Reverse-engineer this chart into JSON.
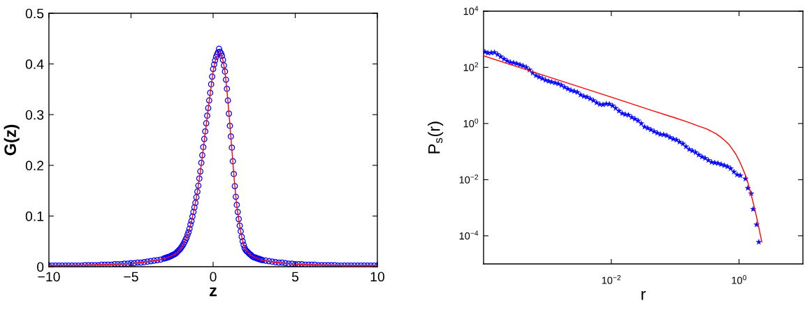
{
  "chart_data": [
    {
      "type": "scatter",
      "xlabel": "z",
      "ylabel": "G(z)",
      "xlim": [
        -10,
        10
      ],
      "ylim": [
        0,
        0.5
      ],
      "xticks": [
        {
          "value": -10,
          "label": "−10"
        },
        {
          "value": -5,
          "label": "−5"
        },
        0,
        5,
        10
      ],
      "yticks": [
        0,
        0.1,
        0.2,
        0.3,
        0.4,
        0.5
      ],
      "series": [
        {
          "type": "scatter",
          "marker": "circle",
          "color": "#0000ff",
          "x": [
            -10.0,
            -9.8,
            -9.6,
            -9.4,
            -9.2,
            -9.0,
            -8.8,
            -8.6,
            -8.4,
            -8.2,
            -8.0,
            -7.8,
            -7.6,
            -7.4,
            -7.2,
            -7.0,
            -6.8,
            -6.6,
            -6.4,
            -6.2,
            -6.0,
            -5.8,
            -5.6,
            -5.4,
            -5.2,
            -5.0,
            -4.8,
            -4.6,
            -4.4,
            -4.2,
            -4.0,
            -3.8,
            -3.6,
            -3.4,
            -3.2,
            -3.0,
            -2.94,
            -2.88,
            -2.82,
            -2.76,
            -2.7,
            -2.64,
            -2.58,
            -2.52,
            -2.46,
            -2.4,
            -2.34,
            -2.28,
            -2.22,
            -2.16,
            -2.1,
            -2.04,
            -1.98,
            -1.92,
            -1.86,
            -1.8,
            -1.74,
            -1.68,
            -1.62,
            -1.56,
            -1.5,
            -1.44,
            -1.38,
            -1.32,
            -1.26,
            -1.2,
            -1.14,
            -1.08,
            -1.02,
            -0.96,
            -0.9,
            -0.84,
            -0.78,
            -0.72,
            -0.66,
            -0.6,
            -0.54,
            -0.48,
            -0.42,
            -0.36,
            -0.3,
            -0.24,
            -0.18,
            -0.12,
            -0.06,
            0,
            0.06,
            0.12,
            0.18,
            0.24,
            0.3,
            0.36,
            0.42,
            0.48,
            0.54,
            0.6,
            0.66,
            0.72,
            0.78,
            0.84,
            0.9,
            0.96,
            1.02,
            1.08,
            1.14,
            1.2,
            1.26,
            1.32,
            1.38,
            1.44,
            1.5,
            1.56,
            1.62,
            1.68,
            1.74,
            1.8,
            1.86,
            1.92,
            1.98,
            2.04,
            2.1,
            2.16,
            2.22,
            2.28,
            2.34,
            2.4,
            2.46,
            2.52,
            2.58,
            2.64,
            2.7,
            2.76,
            2.82,
            2.88,
            2.94,
            3.0,
            3.2,
            3.4,
            3.6,
            3.8,
            4.0,
            4.2,
            4.4,
            4.6,
            4.8,
            5.0,
            5.2,
            5.4,
            5.6,
            5.8,
            6.0,
            6.2,
            6.4,
            6.6,
            6.8,
            7.0,
            7.2,
            7.4,
            7.6,
            7.8,
            8.0,
            8.2,
            8.4,
            8.6,
            8.8,
            9.0,
            9.2,
            9.4,
            9.6,
            9.8,
            10.0
          ],
          "values": [
            0.002,
            0.002,
            0.002,
            0.002,
            0.002,
            0.002,
            0.002,
            0.002,
            0.002,
            0.002,
            0.002,
            0.003,
            0.003,
            0.003,
            0.003,
            0.003,
            0.004,
            0.004,
            0.004,
            0.004,
            0.005,
            0.005,
            0.005,
            0.006,
            0.006,
            0.007,
            0.007,
            0.008,
            0.008,
            0.009,
            0.01,
            0.011,
            0.012,
            0.013,
            0.014,
            0.016,
            0.017,
            0.017,
            0.018,
            0.019,
            0.019,
            0.02,
            0.021,
            0.022,
            0.023,
            0.024,
            0.025,
            0.026,
            0.028,
            0.03,
            0.032,
            0.034,
            0.036,
            0.039,
            0.042,
            0.045,
            0.049,
            0.053,
            0.057,
            0.063,
            0.068,
            0.075,
            0.083,
            0.09,
            0.099,
            0.108,
            0.117,
            0.126,
            0.137,
            0.148,
            0.16,
            0.174,
            0.188,
            0.205,
            0.22,
            0.236,
            0.252,
            0.267,
            0.283,
            0.298,
            0.313,
            0.328,
            0.343,
            0.36,
            0.375,
            0.39,
            0.399,
            0.407,
            0.414,
            0.419,
            0.423,
            0.43,
            0.424,
            0.421,
            0.416,
            0.408,
            0.397,
            0.385,
            0.369,
            0.351,
            0.328,
            0.302,
            0.278,
            0.257,
            0.235,
            0.208,
            0.183,
            0.159,
            0.138,
            0.122,
            0.108,
            0.094,
            0.081,
            0.07,
            0.059,
            0.05,
            0.043,
            0.037,
            0.033,
            0.031,
            0.029,
            0.027,
            0.025,
            0.024,
            0.022,
            0.02,
            0.019,
            0.018,
            0.018,
            0.017,
            0.016,
            0.016,
            0.015,
            0.014,
            0.014,
            0.013,
            0.012,
            0.011,
            0.01,
            0.009,
            0.008,
            0.008,
            0.007,
            0.006,
            0.006,
            0.005,
            0.005,
            0.005,
            0.004,
            0.004,
            0.004,
            0.004,
            0.003,
            0.003,
            0.003,
            0.003,
            0.003,
            0.003,
            0.002,
            0.002,
            0.002,
            0.002,
            0.002,
            0.002,
            0.002,
            0.002,
            0.002,
            0.002,
            0.002,
            0.002,
            0.002
          ]
        },
        {
          "type": "line",
          "line_style": "solid",
          "color": "#ff0000",
          "x": [
            -10,
            -8,
            -6,
            -5,
            -4,
            -3.5,
            -3,
            -2.5,
            -2.2,
            -2,
            -1.8,
            -1.6,
            -1.5,
            -1.4,
            -1.3,
            -1.2,
            -1.1,
            -1.0,
            -0.9,
            -0.8,
            -0.7,
            -0.6,
            -0.5,
            -0.4,
            -0.3,
            -0.2,
            -0.1,
            0,
            0.1,
            0.2,
            0.3,
            0.36,
            0.45,
            0.5,
            0.6,
            0.7,
            0.8,
            0.9,
            1.0,
            1.1,
            1.2,
            1.3,
            1.4,
            1.5,
            1.6,
            1.7,
            1.8,
            1.9,
            2.0,
            2.2,
            2.5,
            3.0,
            3.5,
            4,
            5,
            6,
            8,
            10
          ],
          "values": [
            0.002,
            0.003,
            0.005,
            0.006,
            0.01,
            0.012,
            0.016,
            0.022,
            0.027,
            0.035,
            0.045,
            0.059,
            0.068,
            0.079,
            0.092,
            0.107,
            0.123,
            0.14,
            0.16,
            0.182,
            0.207,
            0.233,
            0.259,
            0.285,
            0.311,
            0.336,
            0.361,
            0.385,
            0.402,
            0.413,
            0.42,
            0.422,
            0.42,
            0.417,
            0.407,
            0.389,
            0.362,
            0.327,
            0.288,
            0.248,
            0.207,
            0.167,
            0.132,
            0.106,
            0.085,
            0.066,
            0.051,
            0.04,
            0.033,
            0.025,
            0.019,
            0.013,
            0.01,
            0.008,
            0.005,
            0.004,
            0.002,
            0.002
          ]
        }
      ]
    },
    {
      "type": "scatter",
      "xlabel": "r",
      "ylabel": "P$_{s}$(r)",
      "log": "xy",
      "xlim": [
        0.0001,
        10
      ],
      "ylim": [
        1e-05,
        10000
      ],
      "xticks": [
        {
          "value": 0.01,
          "label": "10$^{−2}$"
        },
        {
          "value": 1,
          "label": "10$^{0}$"
        }
      ],
      "yticks": [
        {
          "value": 0.0001,
          "label": "10$^{−4}$"
        },
        {
          "value": 0.01,
          "label": "10$^{−2}$"
        },
        {
          "value": 1,
          "label": "10$^{0}$"
        },
        {
          "value": 100,
          "label": "10$^{2}$"
        },
        {
          "value": 10000,
          "label": "10$^{4}$"
        }
      ],
      "series": [
        {
          "type": "scatter",
          "marker": "star",
          "color": "#0000ff",
          "x": [
            0.000105,
            0.000117,
            0.000132,
            0.000148,
            0.000166,
            0.000186,
            0.000209,
            0.000234,
            0.000263,
            0.000295,
            0.000331,
            0.000372,
            0.000417,
            0.000468,
            0.000525,
            0.000589,
            0.000661,
            0.000741,
            0.000832,
            0.000933,
            0.00105,
            0.00117,
            0.00132,
            0.00148,
            0.00166,
            0.00186,
            0.00209,
            0.00234,
            0.00263,
            0.00295,
            0.00331,
            0.00372,
            0.00417,
            0.00468,
            0.00525,
            0.00589,
            0.00661,
            0.00741,
            0.00832,
            0.00933,
            0.0105,
            0.0117,
            0.0132,
            0.0148,
            0.0166,
            0.0186,
            0.0209,
            0.0234,
            0.0263,
            0.0295,
            0.0331,
            0.0372,
            0.0417,
            0.0468,
            0.0525,
            0.0589,
            0.0661,
            0.0741,
            0.0832,
            0.0933,
            0.105,
            0.117,
            0.132,
            0.148,
            0.166,
            0.186,
            0.209,
            0.234,
            0.263,
            0.295,
            0.331,
            0.372,
            0.417,
            0.468,
            0.525,
            0.589,
            0.661,
            0.741,
            0.832,
            0.933,
            1.05,
            1.26,
            1.37,
            1.55,
            1.66,
            1.88,
            2.04
          ],
          "values": [
            355,
            324,
            331,
            339,
            288,
            240,
            200,
            170,
            151,
            145,
            135,
            123,
            112,
            100,
            81,
            63,
            51,
            45,
            40,
            35,
            32,
            30,
            28,
            26,
            23,
            19.5,
            17,
            15.1,
            14.1,
            12.9,
            10.5,
            9.3,
            8.7,
            7.6,
            6.6,
            5.5,
            4.8,
            4.7,
            5.0,
            4.9,
            4.3,
            3.5,
            2.8,
            2.3,
            2.1,
            2.0,
            1.66,
            1.45,
            1.26,
            1.0,
            0.76,
            0.68,
            0.6,
            0.52,
            0.46,
            0.41,
            0.4,
            0.37,
            0.32,
            0.28,
            0.26,
            0.22,
            0.19,
            0.15,
            0.12,
            0.107,
            0.093,
            0.076,
            0.065,
            0.058,
            0.049,
            0.042,
            0.04,
            0.038,
            0.035,
            0.032,
            0.029,
            0.025,
            0.019,
            0.015,
            0.014,
            0.0107,
            0.005,
            0.0032,
            0.00089,
            0.00025,
            6e-05
          ]
        },
        {
          "type": "line",
          "line_style": "solid",
          "color": "#ff0000",
          "x": [
            0.0001,
            0.001,
            0.01,
            0.0412,
            0.0955,
            0.158,
            0.221,
            0.316,
            0.433,
            0.501,
            0.604,
            0.692,
            0.778,
            0.891,
            1.0,
            1.122,
            1.285,
            1.413,
            1.521,
            1.66,
            1.799,
            1.928,
            2.042,
            2.275
          ],
          "values": [
            257,
            46.8,
            8.7,
            3.02,
            1.64,
            1.12,
            0.845,
            0.631,
            0.435,
            0.347,
            0.245,
            0.182,
            0.126,
            0.0813,
            0.049,
            0.0275,
            0.0129,
            0.0063,
            0.00339,
            0.00158,
            0.000741,
            0.000363,
            0.000195,
            6.03e-05
          ]
        }
      ]
    }
  ]
}
